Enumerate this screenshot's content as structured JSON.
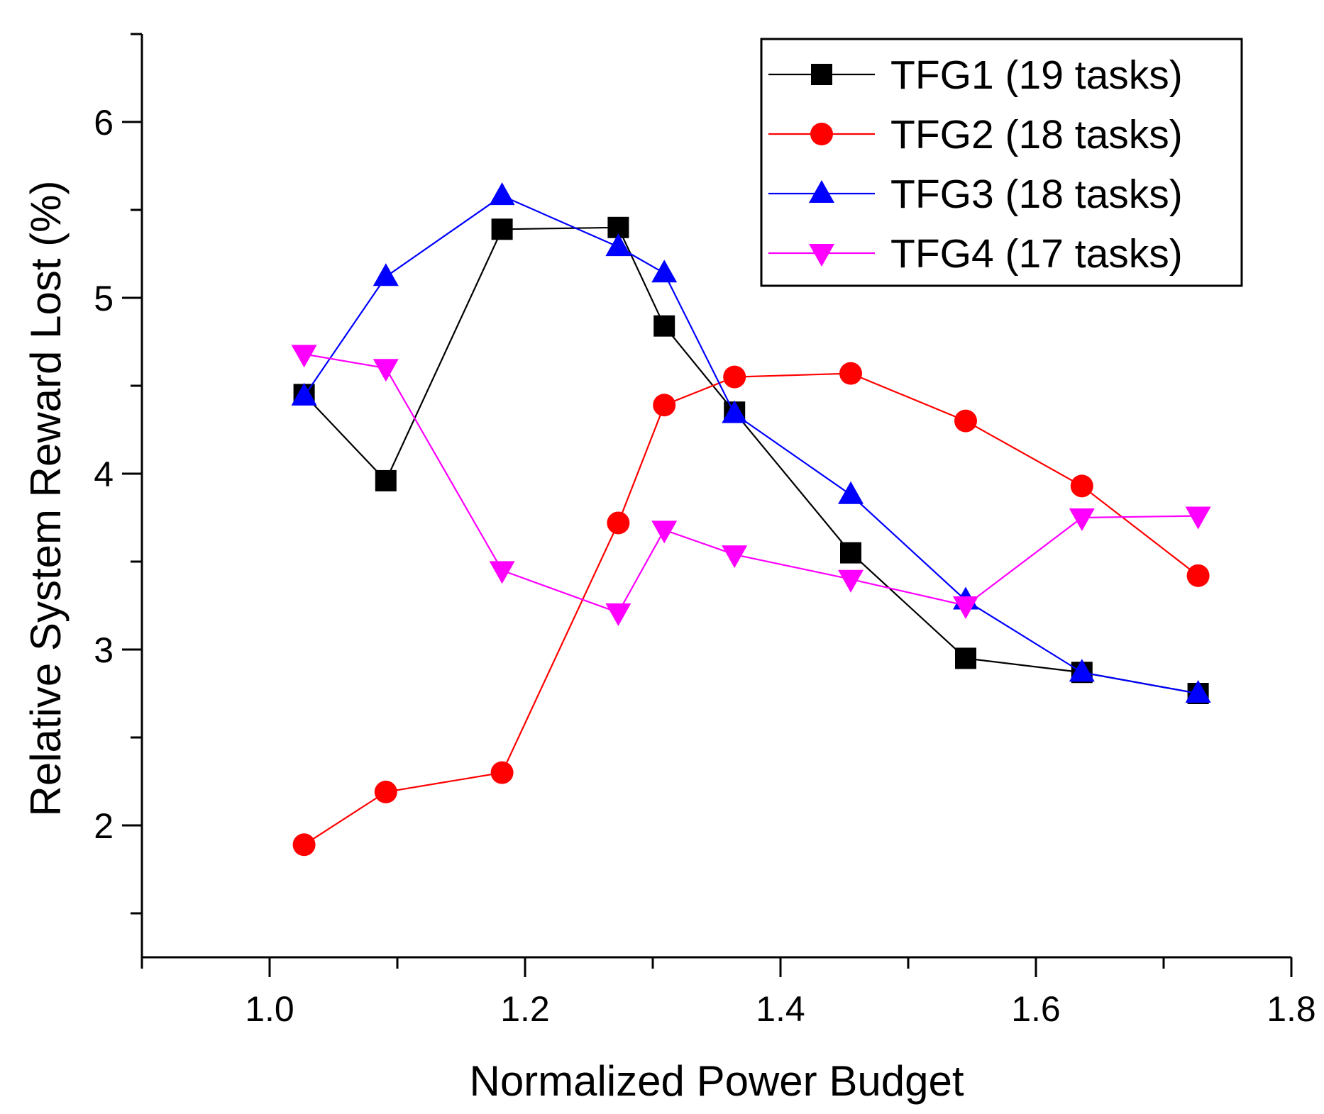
{
  "chart_data": {
    "type": "line",
    "title": "",
    "xlabel": "Normalized Power Budget",
    "ylabel": "Relative System Reward Lost (%)",
    "xlim": [
      0.9,
      1.8
    ],
    "ylim": [
      1.25,
      6.5
    ],
    "x_ticks": [
      1.0,
      1.2,
      1.4,
      1.6,
      1.8
    ],
    "x_tick_labels": [
      "1.0",
      "1.2",
      "1.4",
      "1.6",
      "1.8"
    ],
    "y_ticks": [
      2,
      3,
      4,
      5,
      6
    ],
    "y_tick_labels": [
      "2",
      "3",
      "4",
      "5",
      "6"
    ],
    "legend_position": "top-right",
    "series": [
      {
        "name": "TFG1 (19 tasks)",
        "color": "#000000",
        "marker": "square",
        "x": [
          1.027,
          1.091,
          1.182,
          1.273,
          1.309,
          1.364,
          1.455,
          1.545,
          1.636,
          1.727
        ],
        "y": [
          4.45,
          3.96,
          5.39,
          5.4,
          4.84,
          4.35,
          3.55,
          2.95,
          2.87,
          2.75
        ]
      },
      {
        "name": "TFG2 (18 tasks)",
        "color": "#ff0000",
        "marker": "circle",
        "x": [
          1.027,
          1.091,
          1.182,
          1.273,
          1.309,
          1.364,
          1.455,
          1.545,
          1.636,
          1.727
        ],
        "y": [
          1.89,
          2.19,
          2.3,
          3.72,
          4.39,
          4.55,
          4.57,
          4.3,
          3.93,
          3.42
        ]
      },
      {
        "name": "TFG3 (18 tasks)",
        "color": "#0000ff",
        "marker": "triangle-up",
        "x": [
          1.027,
          1.091,
          1.182,
          1.273,
          1.309,
          1.364,
          1.455,
          1.545,
          1.636,
          1.727
        ],
        "y": [
          4.44,
          5.12,
          5.58,
          5.29,
          5.14,
          4.34,
          3.88,
          3.28,
          2.87,
          2.75
        ]
      },
      {
        "name": "TFG4 (17 tasks)",
        "color": "#ff00ff",
        "marker": "triangle-down",
        "x": [
          1.027,
          1.091,
          1.182,
          1.273,
          1.309,
          1.364,
          1.455,
          1.545,
          1.636,
          1.727
        ],
        "y": [
          4.68,
          4.6,
          3.45,
          3.21,
          3.68,
          3.54,
          3.4,
          3.25,
          3.75,
          3.76
        ]
      }
    ]
  }
}
